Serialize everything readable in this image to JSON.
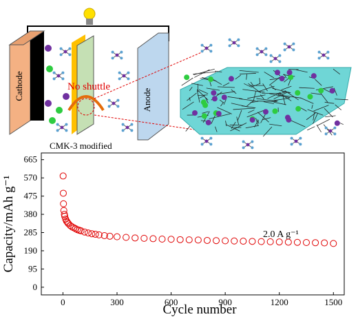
{
  "diagram": {
    "cathode": "Cathode",
    "anode": "Anode",
    "no_shuttle": "No shuttle",
    "separator": "CMK-3 modified"
  },
  "chart_data": {
    "type": "scatter",
    "x_label": "Cycle number",
    "y_label": "Capacity/mAh g⁻¹",
    "annotation": "2.0 A g⁻¹",
    "color": "#e00000",
    "x": [
      1,
      2,
      3,
      5,
      8,
      10,
      15,
      20,
      25,
      30,
      40,
      50,
      60,
      70,
      80,
      90,
      100,
      120,
      140,
      160,
      180,
      200,
      230,
      260,
      300,
      350,
      400,
      450,
      500,
      550,
      600,
      650,
      700,
      750,
      800,
      850,
      900,
      950,
      1000,
      1050,
      1100,
      1150,
      1200,
      1250,
      1300,
      1350,
      1400,
      1450,
      1500
    ],
    "values": [
      580,
      490,
      435,
      400,
      380,
      370,
      355,
      345,
      338,
      332,
      322,
      315,
      310,
      305,
      300,
      297,
      294,
      288,
      283,
      279,
      276,
      273,
      269,
      266,
      263,
      260,
      257,
      255,
      253,
      251,
      250,
      248,
      247,
      246,
      244,
      243,
      242,
      241,
      240,
      239,
      238,
      237,
      236,
      235,
      234,
      233,
      232,
      231,
      228
    ],
    "xlim": [
      -120,
      1560
    ],
    "ylim": [
      -40,
      700
    ],
    "xticks": [
      0,
      300,
      600,
      900,
      1200,
      1500
    ],
    "yticks": [
      0,
      95,
      190,
      285,
      380,
      475,
      570,
      665
    ]
  }
}
